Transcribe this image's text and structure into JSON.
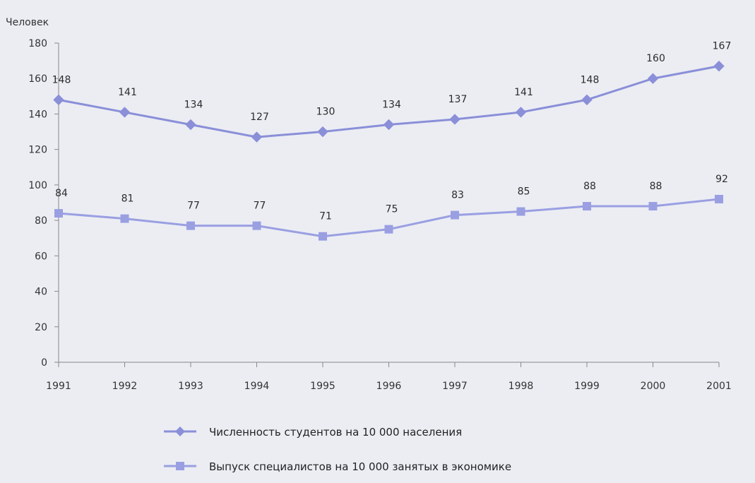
{
  "chart_data": {
    "type": "line",
    "ylabel": "Человек",
    "ylim": [
      0,
      180
    ],
    "yticks": [
      0,
      20,
      40,
      60,
      80,
      100,
      120,
      140,
      160,
      180
    ],
    "categories": [
      "1991",
      "1992",
      "1993",
      "1994",
      "1995",
      "1996",
      "1997",
      "1998",
      "1999",
      "2000",
      "2001"
    ],
    "series": [
      {
        "name": "Численность студентов на 10 000 населения",
        "values": [
          148,
          141,
          134,
          127,
          130,
          134,
          137,
          141,
          148,
          160,
          167
        ],
        "marker": "diamond",
        "color": "#8a8fd8"
      },
      {
        "name": "Выпуск специалистов на 10 000 занятых в экономике",
        "values": [
          84,
          81,
          77,
          77,
          71,
          75,
          83,
          85,
          88,
          88,
          92
        ],
        "marker": "square",
        "color": "#9a9fe2"
      }
    ],
    "grid": false,
    "legend": "bottom"
  }
}
